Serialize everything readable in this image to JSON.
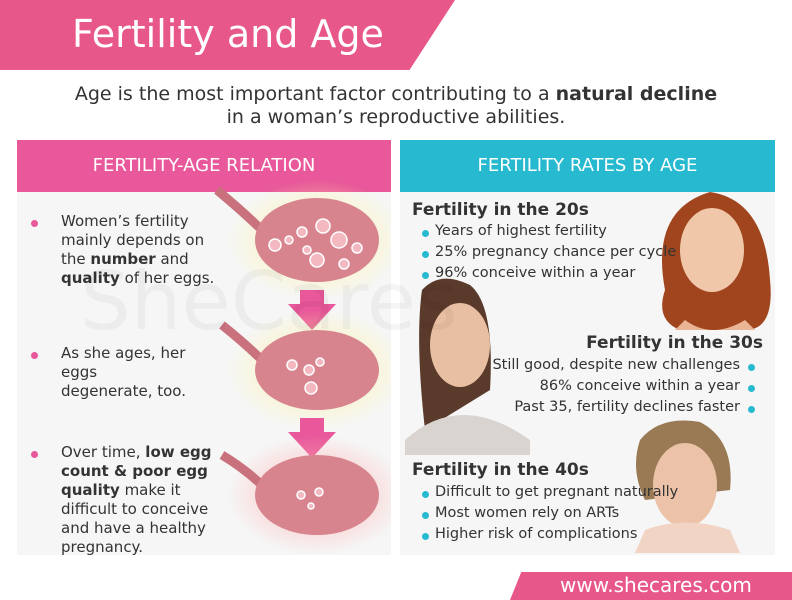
{
  "header": {
    "title": "Fertility and Age"
  },
  "intro": {
    "before": "Age is the most important factor contributing to a",
    "bold": "natural decline",
    "after": "in a woman’s reproductive abilities."
  },
  "watermark": "SheCares",
  "left": {
    "title": "FERTILITY-AGE RELATION",
    "items": [
      [
        "Women’s fertility mainly depends on the",
        "number",
        "and",
        "quality",
        "of her eggs."
      ],
      [
        "As she ages, her eggs degenerate, too."
      ],
      [
        "Over time,",
        "low egg count & poor egg quality",
        "make it difficult to conceive and have a healthy pregnancy."
      ]
    ]
  },
  "right": {
    "title": "FERTILITY RATES BY AGE",
    "sections": [
      {
        "heading": "Fertility in the 20s",
        "bullets": [
          "Years of highest fertility",
          "25% pregnancy chance per cycle",
          "96% conceive within a year"
        ]
      },
      {
        "heading": "Fertility in the 30s",
        "bullets": [
          "Still good, despite new challenges",
          "86% conceive within a year",
          "Past 35, fertility declines faster"
        ]
      },
      {
        "heading": "Fertility in the 40s",
        "bullets": [
          "Difficult to get pregnant naturally",
          "Most women rely on ARTs",
          "Higher risk of complications"
        ]
      }
    ]
  },
  "footer": {
    "url": "www.shecares.com"
  }
}
